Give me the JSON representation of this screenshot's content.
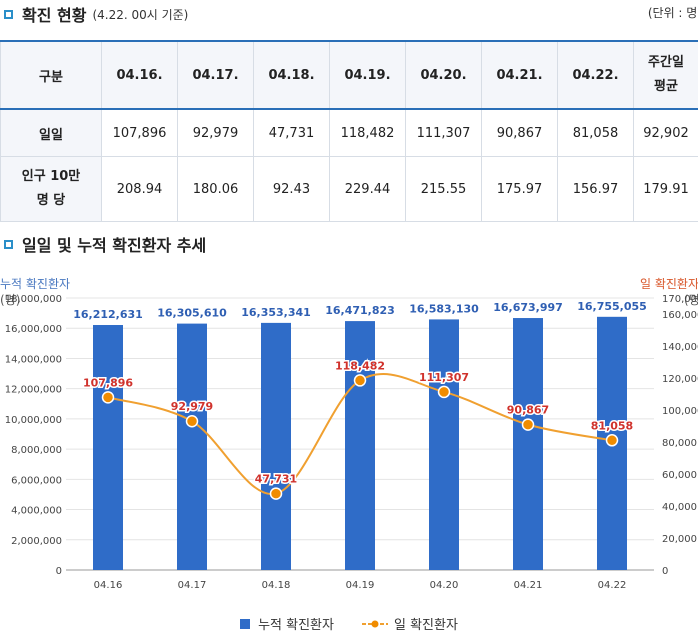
{
  "section1": {
    "title": "확진 현황",
    "subtitle": "(4.22. 00시 기준)",
    "unit": "(단위 : 명)"
  },
  "table": {
    "header": [
      "구분",
      "04.16.",
      "04.17.",
      "04.18.",
      "04.19.",
      "04.20.",
      "04.21.",
      "04.22.",
      "주간일 평균"
    ],
    "rows": [
      {
        "label": "일일",
        "values": [
          "107,896",
          "92,979",
          "47,731",
          "118,482",
          "111,307",
          "90,867",
          "81,058",
          "92,902"
        ]
      },
      {
        "label": "인구 10만 명 당",
        "values": [
          "208.94",
          "180.06",
          "92.43",
          "229.44",
          "215.55",
          "175.97",
          "156.97",
          "179.91"
        ]
      }
    ]
  },
  "section2": {
    "title": "일일 및 누적 확진환자 추세"
  },
  "colors": {
    "bar": "#2f6cc8",
    "line": "#f0a030",
    "marker": "#f08c00",
    "bar_label": "#2f5fb3",
    "line_label": "#d0322c",
    "left_axis": "#4a78c0",
    "right_axis": "#d8562a"
  },
  "chart_data": {
    "type": "bar+line",
    "categories": [
      "04.16",
      "04.17",
      "04.18",
      "04.19",
      "04.20",
      "04.21",
      "04.22"
    ],
    "series": [
      {
        "name": "누적 확진환자",
        "type": "bar",
        "axis": "left",
        "values": [
          16212631,
          16305610,
          16353341,
          16471823,
          16583130,
          16673997,
          16755055
        ],
        "labels": [
          "16,212,631",
          "16,305,610",
          "16,353,341",
          "16,471,823",
          "16,583,130",
          "16,673,997",
          "16,755,055"
        ]
      },
      {
        "name": "일 확진환자",
        "type": "line",
        "axis": "right",
        "values": [
          107896,
          92979,
          47731,
          118482,
          111307,
          90867,
          81058
        ],
        "labels": [
          "107,896",
          "92,979",
          "47,731",
          "118,482",
          "111,307",
          "90,867",
          "81,058"
        ]
      }
    ],
    "left_axis": {
      "label": "누적 확진환자",
      "unit": "(명)",
      "range": [
        0,
        18000000
      ],
      "ticks": [
        "0",
        "2,000,000",
        "4,000,000",
        "6,000,000",
        "8,000,000",
        "10,000,000",
        "12,000,000",
        "14,000,000",
        "16,000,000",
        "18,000,000"
      ],
      "tick_values": [
        0,
        2000000,
        4000000,
        6000000,
        8000000,
        10000000,
        12000000,
        14000000,
        16000000,
        18000000
      ]
    },
    "right_axis": {
      "label": "일 확진환자",
      "unit": "(명)",
      "range": [
        0,
        170000
      ],
      "ticks": [
        "0",
        "20,000",
        "40,000",
        "60,000",
        "80,000",
        "100,000",
        "120,000",
        "140,000",
        "160,000",
        "170,000"
      ],
      "tick_values": [
        0,
        20000,
        40000,
        60000,
        80000,
        100000,
        120000,
        140000,
        160000,
        170000
      ]
    },
    "legend": [
      "누적 확진환자",
      "일 확진환자"
    ],
    "legend_position": "bottom",
    "grid": true
  }
}
